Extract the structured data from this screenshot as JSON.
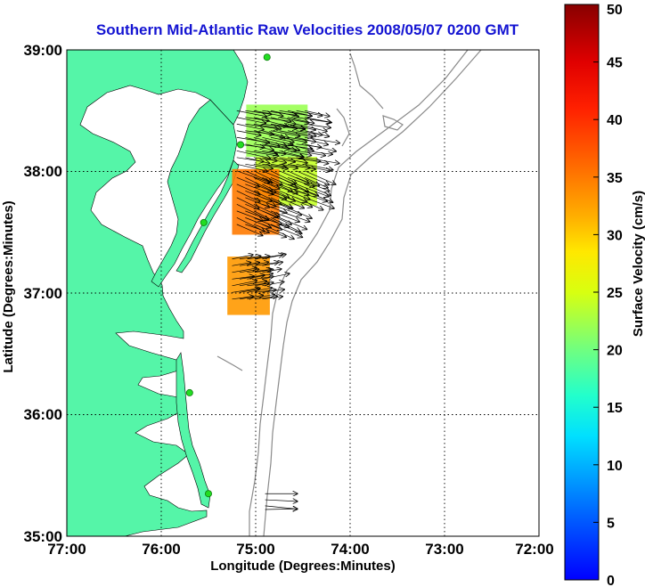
{
  "title": "Southern Mid-Atlantic Raw Velocities 2008/05/07 0200 GMT",
  "xlabel": "Longitude (Degrees:Minutes)",
  "ylabel": "Latitude (Degrees:Minutes)",
  "x_ticks": [
    "77:00",
    "76:00",
    "75:00",
    "74:00",
    "73:00",
    "72:00"
  ],
  "y_ticks": [
    "39:00",
    "38:00",
    "37:00",
    "36:00",
    "35:00"
  ],
  "colorbar": {
    "label": "Surface Velocity (cm/s)",
    "ticks": [
      "0",
      "5",
      "10",
      "15",
      "20",
      "25",
      "30",
      "35",
      "40",
      "45",
      "50"
    ],
    "range": [
      0,
      50
    ],
    "colormap": "jet"
  },
  "colors": {
    "land": "#55f5a8",
    "water": "#ffffff",
    "title": "#1414d2",
    "isobath": "#8a8a8a",
    "station": "#22dd22"
  },
  "map_data": {
    "lon_range": [
      -77,
      -72
    ],
    "lat_range": [
      35,
      39
    ],
    "grid": true,
    "stations": [
      {
        "lon": -74.88,
        "lat": 38.94
      },
      {
        "lon": -75.16,
        "lat": 38.22
      },
      {
        "lon": -75.55,
        "lat": 37.58
      },
      {
        "lon": -75.7,
        "lat": 36.18
      },
      {
        "lon": -75.5,
        "lat": 35.35
      }
    ],
    "velocity_patches": [
      {
        "lon": [
          -75.1,
          -74.45
        ],
        "lat": [
          38.12,
          38.55
        ],
        "speed": 22
      },
      {
        "lon": [
          -75.0,
          -74.35
        ],
        "lat": [
          37.72,
          38.12
        ],
        "speed": 24
      },
      {
        "lon": [
          -75.25,
          -74.75
        ],
        "lat": [
          37.48,
          38.02
        ],
        "speed": 35
      },
      {
        "lon": [
          -75.3,
          -74.85
        ],
        "lat": [
          36.82,
          37.3
        ],
        "speed": 33
      }
    ]
  }
}
